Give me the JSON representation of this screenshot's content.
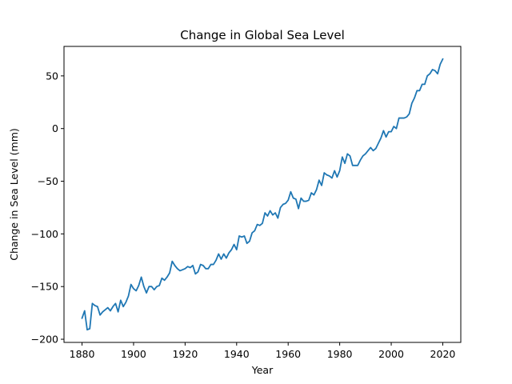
{
  "chart_data": {
    "type": "line",
    "title": "Change in Global Sea Level",
    "xlabel": "Year",
    "ylabel": "Change in Sea Level (mm)",
    "xlim": [
      1873,
      2027
    ],
    "ylim": [
      -203,
      78
    ],
    "xticks": [
      1880,
      1900,
      1920,
      1940,
      1960,
      1980,
      2000,
      2020
    ],
    "yticks": [
      -200,
      -150,
      -100,
      -50,
      0,
      50
    ],
    "grid": false,
    "line_color": "#1f77b4",
    "series": [
      {
        "name": "Change in Sea Level",
        "x": [
          1880,
          1881,
          1882,
          1883,
          1884,
          1885,
          1886,
          1887,
          1888,
          1889,
          1890,
          1891,
          1892,
          1893,
          1894,
          1895,
          1896,
          1897,
          1898,
          1899,
          1900,
          1901,
          1902,
          1903,
          1904,
          1905,
          1906,
          1907,
          1908,
          1909,
          1910,
          1911,
          1912,
          1913,
          1914,
          1915,
          1916,
          1917,
          1918,
          1919,
          1920,
          1921,
          1922,
          1923,
          1924,
          1925,
          1926,
          1927,
          1928,
          1929,
          1930,
          1931,
          1932,
          1933,
          1934,
          1935,
          1936,
          1937,
          1938,
          1939,
          1940,
          1941,
          1942,
          1943,
          1944,
          1945,
          1946,
          1947,
          1948,
          1949,
          1950,
          1951,
          1952,
          1953,
          1954,
          1955,
          1956,
          1957,
          1958,
          1959,
          1960,
          1961,
          1962,
          1963,
          1964,
          1965,
          1966,
          1967,
          1968,
          1969,
          1970,
          1971,
          1972,
          1973,
          1974,
          1975,
          1976,
          1977,
          1978,
          1979,
          1980,
          1981,
          1982,
          1983,
          1984,
          1985,
          1986,
          1987,
          1988,
          1989,
          1990,
          1991,
          1992,
          1993,
          1994,
          1995,
          1996,
          1997,
          1998,
          1999,
          2000,
          2001,
          2002,
          2003,
          2004,
          2005,
          2006,
          2007,
          2008,
          2009,
          2010,
          2011,
          2012,
          2013,
          2014,
          2015,
          2016,
          2017,
          2018,
          2019,
          2020
        ],
        "values": [
          -180,
          -173,
          -191,
          -190,
          -166,
          -168,
          -169,
          -177,
          -174,
          -172,
          -170,
          -173,
          -169,
          -166,
          -174,
          -163,
          -169,
          -165,
          -159,
          -148,
          -152,
          -154,
          -149,
          -141,
          -150,
          -156,
          -150,
          -150,
          -153,
          -150,
          -149,
          -142,
          -144,
          -141,
          -137,
          -126,
          -130,
          -133,
          -135,
          -134,
          -133,
          -131,
          -132,
          -130,
          -138,
          -136,
          -129,
          -130,
          -133,
          -133,
          -129,
          -129,
          -125,
          -119,
          -124,
          -119,
          -123,
          -118,
          -115,
          -110,
          -115,
          -102,
          -103,
          -102,
          -109,
          -107,
          -99,
          -97,
          -91,
          -92,
          -90,
          -80,
          -83,
          -78,
          -82,
          -80,
          -85,
          -75,
          -72,
          -71,
          -68,
          -60,
          -66,
          -67,
          -76,
          -66,
          -69,
          -69,
          -68,
          -61,
          -63,
          -58,
          -49,
          -54,
          -42,
          -44,
          -45,
          -47,
          -40,
          -46,
          -40,
          -27,
          -33,
          -24,
          -26,
          -35,
          -35,
          -35,
          -30,
          -26,
          -24,
          -21,
          -18,
          -21,
          -19,
          -14,
          -9,
          -2,
          -8,
          -3,
          -3,
          2,
          0,
          10,
          10,
          10,
          11,
          14,
          24,
          29,
          36,
          36,
          42,
          42,
          50,
          52,
          56,
          55,
          52,
          61,
          66
        ]
      }
    ]
  }
}
